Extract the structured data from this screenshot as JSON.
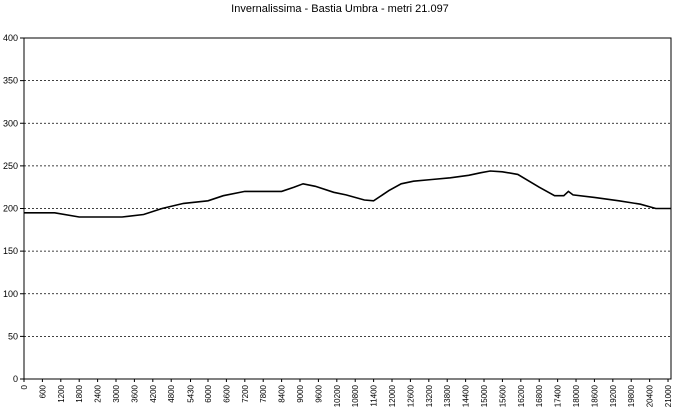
{
  "chart_data": {
    "type": "line",
    "title": "Invernalissima - Bastia Umbra - metri 21.097",
    "xlabel": "",
    "ylabel": "",
    "xlim": [
      0,
      21097
    ],
    "ylim": [
      0,
      400
    ],
    "grid": true,
    "legend": "none",
    "line_color": "#000000",
    "ytick_labels": [
      "0",
      "50",
      "100",
      "150",
      "200",
      "250",
      "300",
      "350",
      "400"
    ],
    "ytick_values": [
      0,
      50,
      100,
      150,
      200,
      250,
      300,
      350,
      400
    ],
    "xtick_labels": [
      "0",
      "600",
      "1200",
      "1800",
      "2400",
      "3000",
      "3600",
      "4200",
      "4800",
      "5430",
      "6000",
      "6600",
      "7200",
      "7800",
      "8400",
      "9000",
      "9600",
      "10200",
      "10800",
      "11400",
      "12000",
      "12600",
      "13200",
      "13800",
      "14400",
      "15000",
      "15600",
      "16200",
      "16800",
      "17400",
      "18000",
      "18600",
      "19200",
      "19800",
      "20400",
      "21000"
    ],
    "xtick_values": [
      0,
      600,
      1200,
      1800,
      2400,
      3000,
      3600,
      4200,
      4800,
      5430,
      6000,
      6600,
      7200,
      7800,
      8400,
      9000,
      9600,
      10200,
      10800,
      11400,
      12000,
      12600,
      13200,
      13800,
      14400,
      15000,
      15600,
      16200,
      16800,
      17400,
      18000,
      18600,
      19200,
      19800,
      20400,
      21000
    ],
    "series": [
      {
        "x": [
          0,
          1000,
          1800,
          3200,
          3900,
          4500,
          5200,
          6000,
          6500,
          7200,
          7700,
          8400,
          8800,
          9100,
          9500,
          10100,
          10500,
          11100,
          11400,
          11900,
          12300,
          12700,
          13300,
          13900,
          14500,
          14900,
          15200,
          15600,
          16100,
          16800,
          17300,
          17600,
          17750,
          17900,
          18600,
          19400,
          20100,
          20600,
          21097
        ],
        "y": [
          195,
          195,
          190,
          190,
          193,
          200,
          206,
          209,
          215,
          220,
          220,
          220,
          225,
          229,
          226,
          219,
          216,
          210,
          209,
          221,
          229,
          232,
          234,
          236,
          239,
          242,
          244,
          243,
          240,
          225,
          215,
          215,
          220,
          216,
          213,
          209,
          205,
          200,
          200
        ]
      }
    ]
  }
}
